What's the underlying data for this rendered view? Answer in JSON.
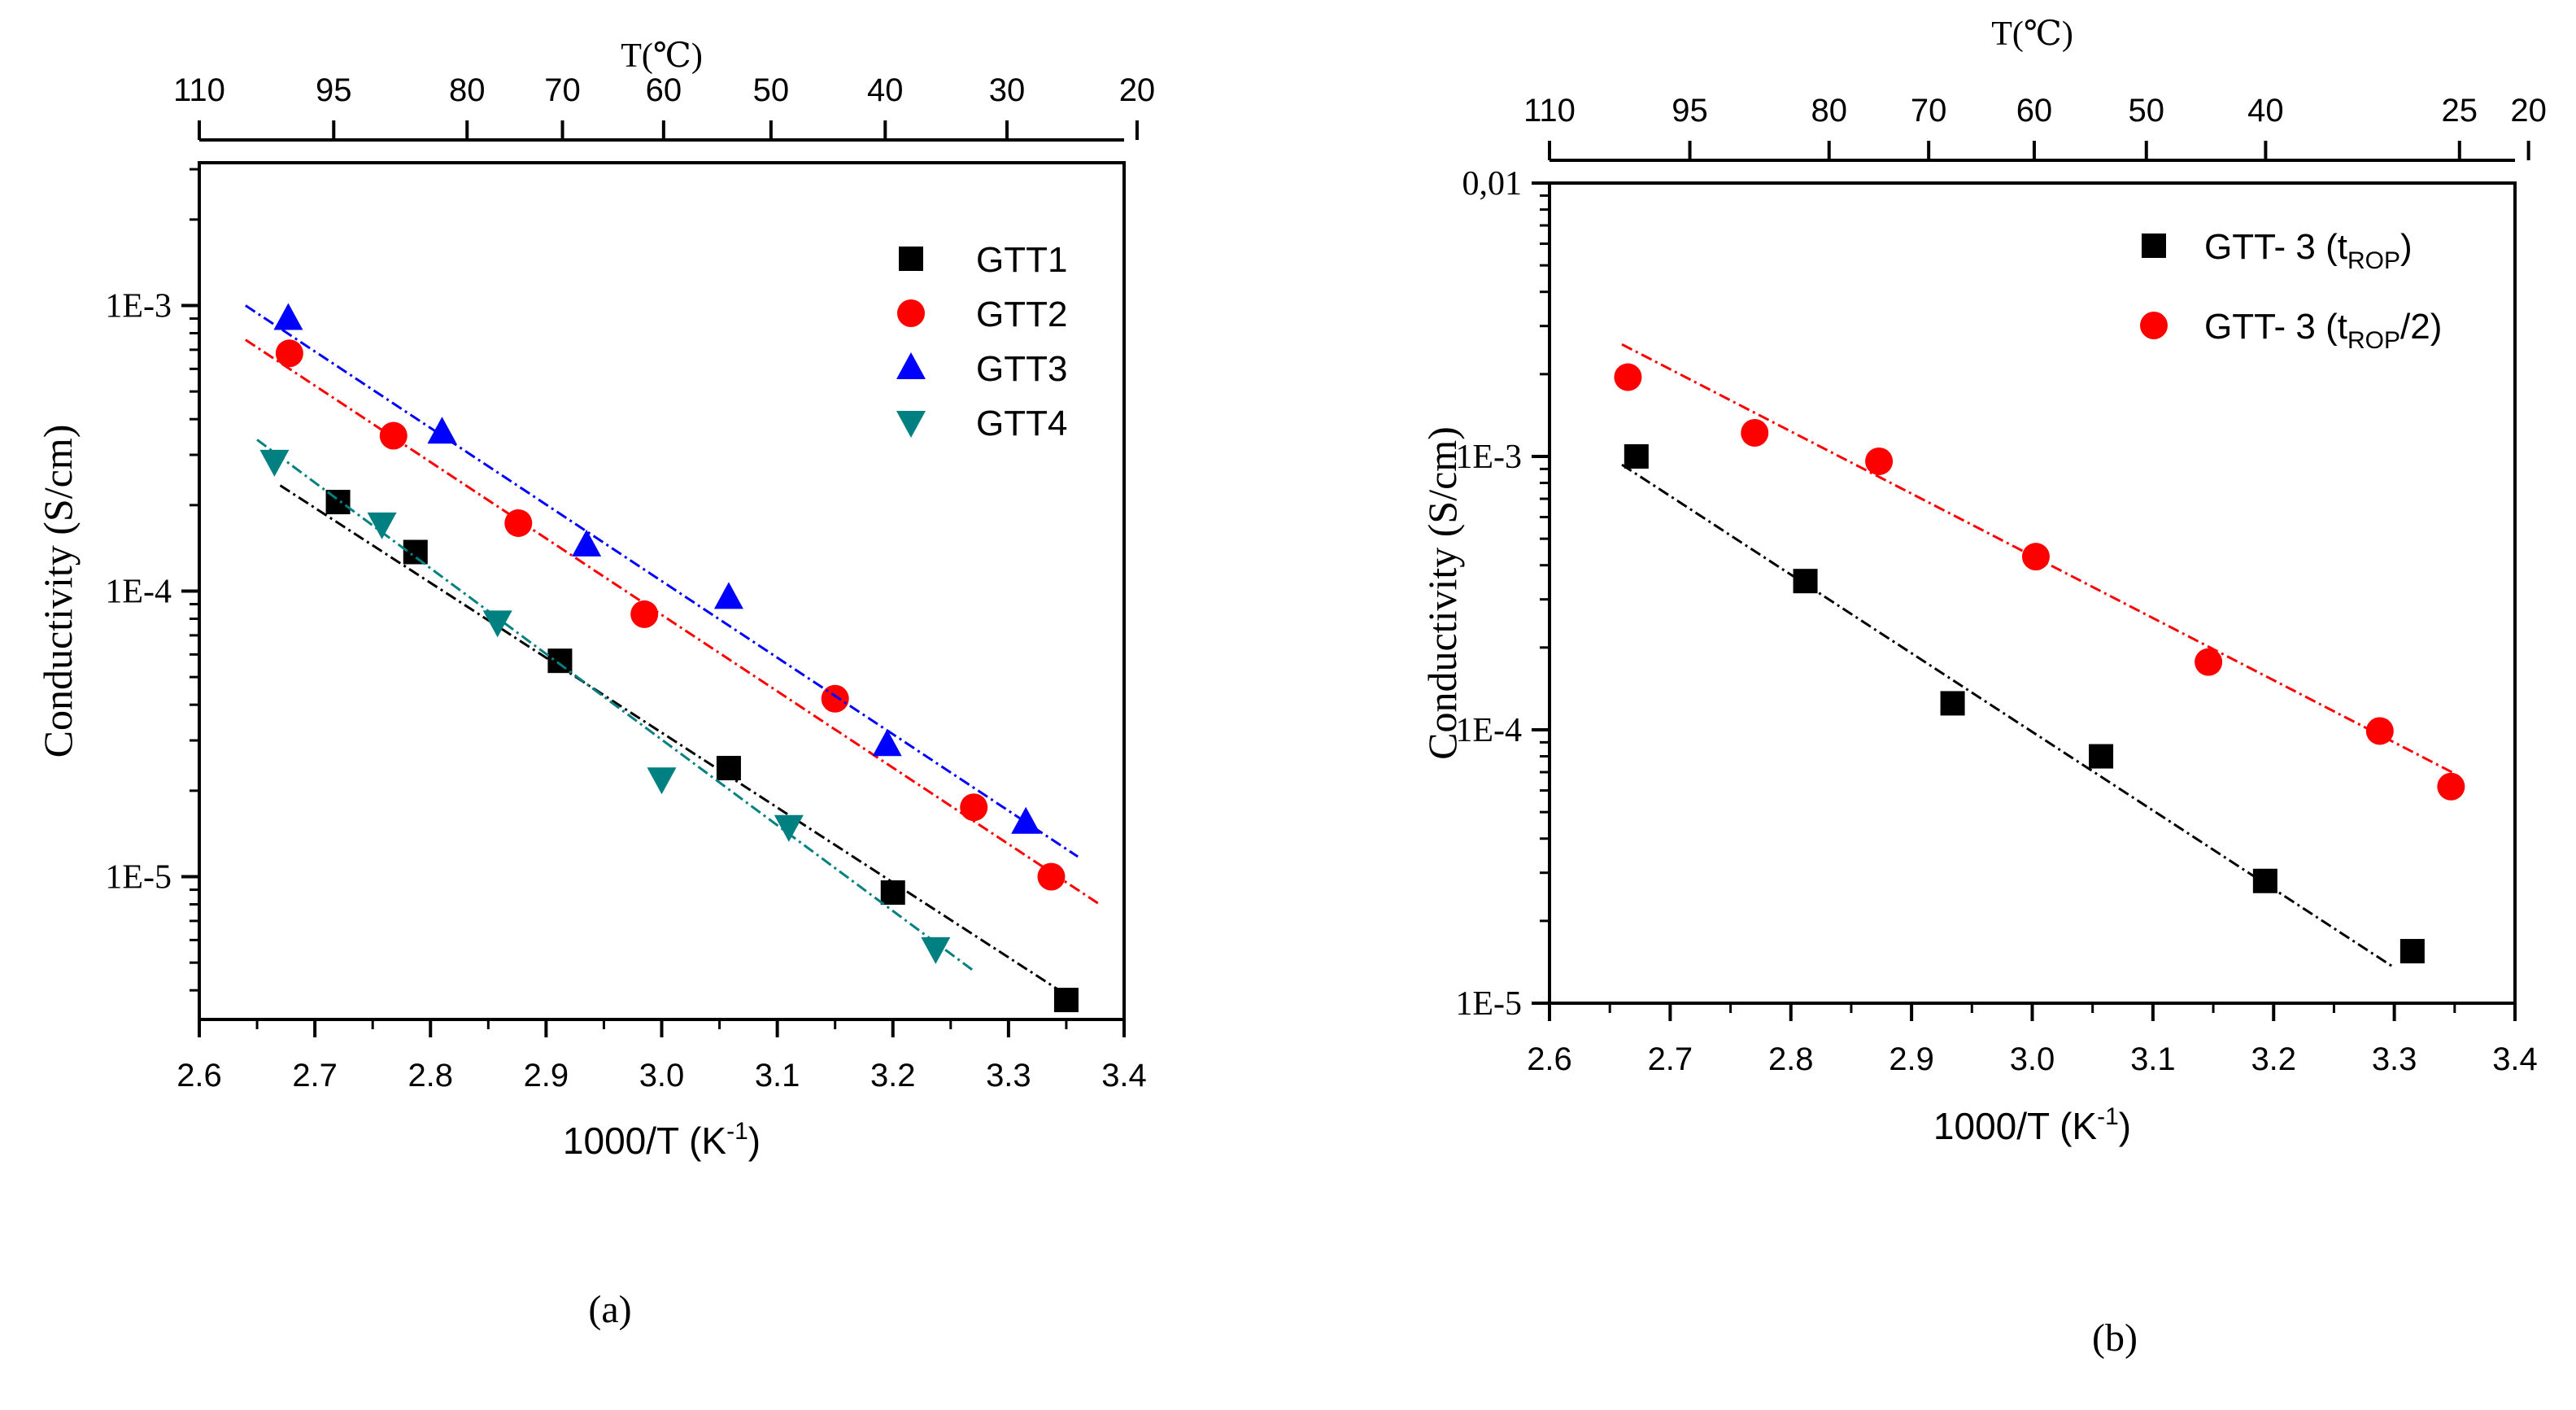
{
  "chart_data": [
    {
      "id": "a",
      "type": "scatter",
      "panel_label": "(a)",
      "title": "",
      "xlabel": "1000/T (K",
      "xlabel_sup": "-1",
      "xlabel_close": ")",
      "ylabel": "Conductivity (S/cm)",
      "top_axis_label": "T(℃)",
      "xlim": [
        2.6,
        3.4
      ],
      "ylim_log10": [
        -5.5,
        -2.5
      ],
      "yscale": "log",
      "x_ticks": [
        2.6,
        2.7,
        2.8,
        2.9,
        3.0,
        3.1,
        3.2,
        3.3,
        3.4
      ],
      "x_tick_labels": [
        "2.6",
        "2.7",
        "2.8",
        "2.9",
        "3.0",
        "3.1",
        "3.2",
        "3.3",
        "3.4"
      ],
      "y_ticks_log10": [
        -5,
        -4,
        -3
      ],
      "y_tick_labels": [
        "1E-5",
        "1E-4",
        "1E-3"
      ],
      "top_ticks_celsius": [
        110,
        95,
        80,
        70,
        60,
        50,
        40,
        30,
        20
      ],
      "top_tick_labels": [
        "110",
        "95",
        "80",
        "70",
        "60",
        "50",
        "40",
        "30",
        "20"
      ],
      "legend_position": "top-right",
      "series": [
        {
          "name": "GTT1",
          "marker": "square",
          "color": "#000000",
          "x": [
            2.72,
            2.787,
            2.912,
            3.058,
            3.2,
            3.35
          ],
          "y": [
            0.000205,
            0.000137,
            5.7e-05,
            2.4e-05,
            8.8e-06,
            3.7e-06
          ],
          "fit_x": [
            2.67,
            3.36
          ],
          "fit_log10y": [
            -3.63,
            -5.44
          ]
        },
        {
          "name": "GTT2",
          "marker": "circle",
          "color": "#ff0000",
          "x": [
            2.678,
            2.768,
            2.876,
            2.985,
            3.15,
            3.27,
            3.337
          ],
          "y": [
            0.00068,
            0.00035,
            0.000173,
            8.3e-05,
            4.2e-05,
            1.75e-05,
            1e-05
          ],
          "fit_x": [
            2.64,
            3.38
          ],
          "fit_log10y": [
            -3.12,
            -5.1
          ]
        },
        {
          "name": "GTT3",
          "marker": "triangle-up",
          "color": "#0000ff",
          "x": [
            2.677,
            2.81,
            2.935,
            3.058,
            3.195,
            3.315
          ],
          "y": [
            0.0009,
            0.00036,
            0.000145,
            9.5e-05,
            2.9e-05,
            1.55e-05
          ],
          "fit_x": [
            2.64,
            3.36
          ],
          "fit_log10y": [
            -3.0,
            -4.93
          ]
        },
        {
          "name": "GTT4",
          "marker": "triangle-down",
          "color": "#008080",
          "x": [
            2.665,
            2.758,
            2.858,
            3.0,
            3.11,
            3.237
          ],
          "y": [
            0.000285,
            0.000172,
            7.8e-05,
            2.2e-05,
            1.5e-05,
            5.6e-06
          ],
          "fit_x": [
            2.65,
            3.27
          ],
          "fit_log10y": [
            -3.47,
            -5.33
          ]
        }
      ]
    },
    {
      "id": "b",
      "type": "scatter",
      "panel_label": "(b)",
      "title": "",
      "xlabel": "1000/T (K",
      "xlabel_sup": "-1",
      "xlabel_close": ")",
      "ylabel": "Conductivity (S/cm)",
      "top_axis_label": "T(℃)",
      "xlim": [
        2.6,
        3.4
      ],
      "ylim_log10": [
        -5,
        -2
      ],
      "yscale": "log",
      "x_ticks": [
        2.6,
        2.7,
        2.8,
        2.9,
        3.0,
        3.1,
        3.2,
        3.3,
        3.4
      ],
      "x_tick_labels": [
        "2.6",
        "2.7",
        "2.8",
        "2.9",
        "3.0",
        "3.1",
        "3.2",
        "3.3",
        "3.4"
      ],
      "y_ticks_log10": [
        -5,
        -4,
        -3,
        -2
      ],
      "y_tick_labels": [
        "1E-5",
        "1E-4",
        "1E-3",
        "0,01"
      ],
      "top_ticks_celsius": [
        110,
        95,
        80,
        70,
        60,
        50,
        40,
        25,
        20
      ],
      "top_tick_labels": [
        "110",
        "95",
        "80",
        "70",
        "60",
        "50",
        "40",
        "25",
        "20"
      ],
      "legend_position": "top-right",
      "series": [
        {
          "name": "GTT- 3 (t",
          "name_sub": "ROP",
          "name_tail": ")",
          "marker": "square",
          "color": "#000000",
          "x": [
            2.672,
            2.812,
            2.934,
            3.057,
            3.193,
            3.315
          ],
          "y": [
            0.001,
            0.00035,
            0.000125,
            8e-05,
            2.8e-05,
            1.55e-05
          ],
          "fit_x": [
            2.66,
            3.3
          ],
          "fit_log10y": [
            -3.03,
            -4.87
          ]
        },
        {
          "name": "GTT- 3 (t",
          "name_sub": "ROP",
          "name_tail": "/2)",
          "marker": "circle",
          "color": "#ff0000",
          "x": [
            2.665,
            2.77,
            2.873,
            3.003,
            3.146,
            3.288,
            3.347
          ],
          "y": [
            0.00195,
            0.00122,
            0.00096,
            0.00043,
            0.000177,
            9.9e-05,
            6.2e-05
          ],
          "fit_x": [
            2.66,
            3.35
          ],
          "fit_log10y": [
            -2.59,
            -4.16
          ]
        }
      ]
    }
  ]
}
